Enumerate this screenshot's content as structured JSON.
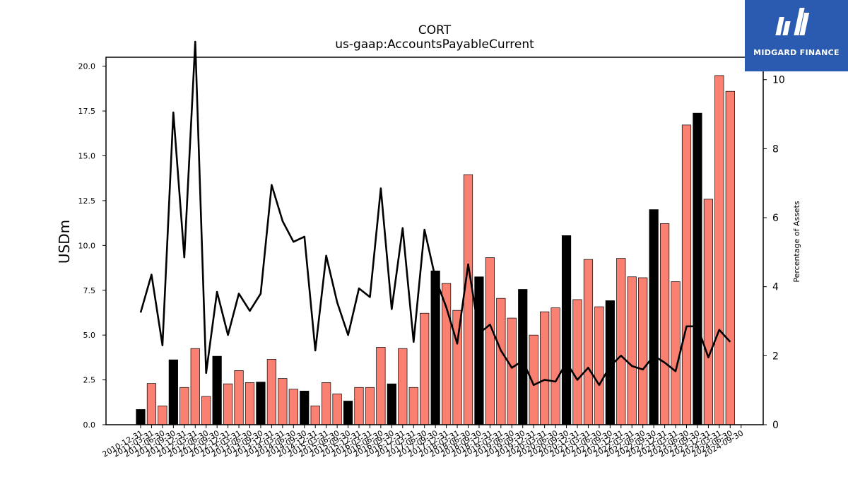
{
  "title": "CORT",
  "subtitle": "us-gaap:AccountsPayableCurrent",
  "logo": {
    "text": "MIDGARD FINANCE",
    "icon": "midgard-logo-icon",
    "bg_color": "#2b5bb0"
  },
  "chart_data": {
    "type": "bar",
    "ylabel": "USDm",
    "y2label": "Percentage of Assets",
    "ylim": [
      0,
      20.5
    ],
    "y2lim": [
      0,
      10.65
    ],
    "yticks": [
      "0.0",
      "2.5",
      "5.0",
      "7.5",
      "10.0",
      "12.5",
      "15.0",
      "17.5",
      "20.0"
    ],
    "y2ticks": [
      "0",
      "2",
      "4",
      "6",
      "8",
      "10"
    ],
    "colors": {
      "annual": "#000000",
      "quarterly": "#fa8072",
      "line": "#000000"
    },
    "categories": [
      "2010-12-31",
      "2011-03-31",
      "2011-06-30",
      "2011-09-30",
      "2011-12-31",
      "2012-03-31",
      "2012-06-30",
      "2012-09-30",
      "2012-12-31",
      "2013-03-31",
      "2013-06-30",
      "2013-09-30",
      "2013-12-31",
      "2014-03-31",
      "2014-06-30",
      "2014-09-30",
      "2014-12-31",
      "2015-03-31",
      "2015-06-30",
      "2015-09-30",
      "2015-12-31",
      "2016-03-31",
      "2016-06-30",
      "2016-09-30",
      "2016-12-31",
      "2017-03-31",
      "2017-06-30",
      "2017-09-30",
      "2017-12-31",
      "2018-03-31",
      "2018-06-30",
      "2018-09-30",
      "2018-12-31",
      "2019-03-31",
      "2019-06-30",
      "2019-09-30",
      "2019-12-31",
      "2020-03-31",
      "2020-06-30",
      "2020-09-30",
      "2020-12-31",
      "2021-03-31",
      "2021-06-30",
      "2021-09-30",
      "2021-12-31",
      "2022-03-31",
      "2022-06-30",
      "2022-09-30",
      "2022-12-31",
      "2023-03-31",
      "2023-06-30",
      "2023-09-30",
      "2023-12-31",
      "2024-03-31",
      "2024-06-30",
      "2024-09-30"
    ],
    "series": [
      {
        "values": [
          0.85,
          2.3,
          1.05,
          3.62,
          2.08,
          4.25,
          1.58,
          3.82,
          2.28,
          3.02,
          2.35,
          2.38,
          3.65,
          2.58,
          1.98,
          1.88,
          1.05,
          2.35,
          1.72,
          1.32,
          2.08,
          2.08,
          4.32,
          2.28,
          4.25,
          2.08,
          6.22,
          8.58,
          7.88,
          6.38,
          13.95,
          8.25,
          9.32,
          7.05,
          5.95,
          7.55,
          5.0,
          6.3,
          6.52,
          10.55,
          6.98,
          9.22,
          6.58,
          6.92,
          9.28,
          8.25,
          8.2,
          12.0,
          11.22,
          7.98,
          16.72,
          17.38,
          12.58,
          19.48,
          18.6,
          null
        ],
        "annual": [
          true,
          false,
          false,
          true,
          false,
          false,
          false,
          true,
          false,
          false,
          false,
          true,
          false,
          false,
          false,
          true,
          false,
          false,
          false,
          true,
          false,
          false,
          false,
          true,
          false,
          false,
          false,
          true,
          false,
          false,
          false,
          true,
          false,
          false,
          false,
          true,
          false,
          false,
          false,
          true,
          false,
          false,
          false,
          true,
          false,
          false,
          false,
          true,
          false,
          false,
          false,
          true,
          false,
          false,
          false,
          false
        ]
      },
      {
        "values": [
          3.25,
          4.35,
          2.3,
          9.05,
          4.85,
          11.1,
          1.5,
          3.85,
          2.6,
          3.8,
          3.3,
          3.8,
          6.95,
          5.9,
          5.3,
          5.45,
          2.15,
          4.9,
          3.55,
          2.6,
          3.95,
          3.7,
          6.85,
          3.35,
          5.7,
          2.4,
          5.65,
          4.25,
          3.4,
          2.35,
          4.65,
          2.65,
          2.9,
          2.15,
          1.65,
          1.85,
          1.15,
          1.3,
          1.25,
          1.8,
          1.3,
          1.65,
          1.15,
          1.7,
          2.0,
          1.7,
          1.6,
          2.0,
          1.8,
          1.55,
          2.85,
          2.85,
          1.95,
          2.75,
          2.4,
          null
        ]
      }
    ]
  }
}
